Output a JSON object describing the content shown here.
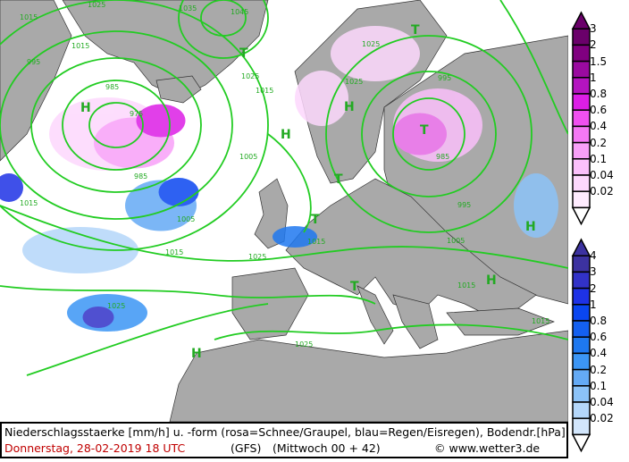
{
  "map": {
    "isobar_color": "#22cc22",
    "land_color": "#a9a9a9",
    "sea_color": "#ffffff",
    "labels": [
      "1015",
      "1025",
      "1035",
      "1045",
      "1025",
      "995",
      "985",
      "975",
      "1005",
      "1015",
      "1025",
      "1015",
      "1005",
      "995",
      "985",
      "1025",
      "1015",
      "1005",
      "1015",
      "1025",
      "H",
      "T",
      "T",
      "H",
      "T",
      "T",
      "H",
      "H",
      "H",
      "T",
      "T",
      "H",
      "1015",
      "995",
      "1015",
      "1025",
      "1025",
      "985",
      "1015"
    ]
  },
  "legend_snow": {
    "title": "rosa=Schnee/Graupel",
    "values": [
      "3",
      "2",
      "1.5",
      "1",
      "0.8",
      "0.6",
      "0.4",
      "0.2",
      "0.1",
      "0.04",
      "0.02"
    ],
    "colors": [
      "#6a006a",
      "#800080",
      "#9a0aa0",
      "#b414c0",
      "#dc1ee6",
      "#f050f0",
      "#f478f4",
      "#f8a0f8",
      "#fbc0fb",
      "#fdd8fd",
      "#feebfe"
    ]
  },
  "legend_rain": {
    "title": "blau=Regen/Eisregen",
    "values": [
      "4",
      "3",
      "2",
      "1",
      "0.8",
      "0.6",
      "0.4",
      "0.2",
      "0.1",
      "0.04",
      "0.02"
    ],
    "colors": [
      "#3c32a0",
      "#3232c8",
      "#1e32e6",
      "#0a46f0",
      "#1460f0",
      "#1e78f0",
      "#3c96f5",
      "#64aaf5",
      "#8cc3f8",
      "#b4d7fa",
      "#d2e6fc"
    ]
  },
  "caption": {
    "line1": "Niederschlagsstaerke [mm/h] u. -form (rosa=Schnee/Graupel, blau=Regen/Eisregen), Bodendr.[hPa]",
    "date": "Donnerstag, 28-02-2019   18 UTC",
    "model": "(GFS)",
    "run": "(Mittwoch 00 + 42)",
    "copyright": "© www.wetter3.de"
  }
}
